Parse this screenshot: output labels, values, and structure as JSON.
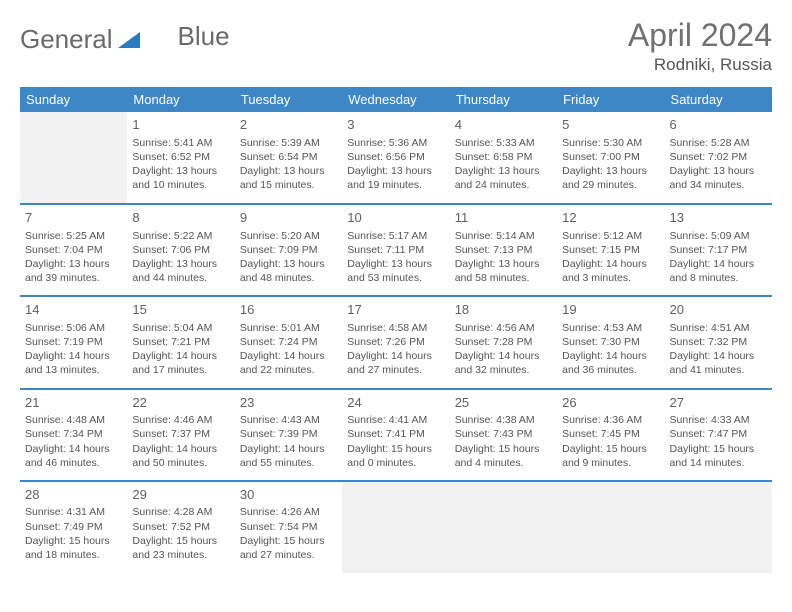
{
  "brand": {
    "part1": "General",
    "part2": "Blue"
  },
  "title": "April 2024",
  "location": "Rodniki, Russia",
  "colors": {
    "header_bg": "#3d87c7",
    "header_text": "#ffffff",
    "border": "#3d87c7",
    "empty_bg": "#f2f2f2",
    "text": "#555555",
    "title_text": "#707070",
    "logo_text": "#6a6a6a",
    "logo_accent": "#2a7bbf"
  },
  "weekdays": [
    "Sunday",
    "Monday",
    "Tuesday",
    "Wednesday",
    "Thursday",
    "Friday",
    "Saturday"
  ],
  "cells": [
    {
      "empty": true
    },
    {
      "day": "1",
      "sunrise": "Sunrise: 5:41 AM",
      "sunset": "Sunset: 6:52 PM",
      "daylight1": "Daylight: 13 hours",
      "daylight2": "and 10 minutes."
    },
    {
      "day": "2",
      "sunrise": "Sunrise: 5:39 AM",
      "sunset": "Sunset: 6:54 PM",
      "daylight1": "Daylight: 13 hours",
      "daylight2": "and 15 minutes."
    },
    {
      "day": "3",
      "sunrise": "Sunrise: 5:36 AM",
      "sunset": "Sunset: 6:56 PM",
      "daylight1": "Daylight: 13 hours",
      "daylight2": "and 19 minutes."
    },
    {
      "day": "4",
      "sunrise": "Sunrise: 5:33 AM",
      "sunset": "Sunset: 6:58 PM",
      "daylight1": "Daylight: 13 hours",
      "daylight2": "and 24 minutes."
    },
    {
      "day": "5",
      "sunrise": "Sunrise: 5:30 AM",
      "sunset": "Sunset: 7:00 PM",
      "daylight1": "Daylight: 13 hours",
      "daylight2": "and 29 minutes."
    },
    {
      "day": "6",
      "sunrise": "Sunrise: 5:28 AM",
      "sunset": "Sunset: 7:02 PM",
      "daylight1": "Daylight: 13 hours",
      "daylight2": "and 34 minutes."
    },
    {
      "day": "7",
      "sunrise": "Sunrise: 5:25 AM",
      "sunset": "Sunset: 7:04 PM",
      "daylight1": "Daylight: 13 hours",
      "daylight2": "and 39 minutes."
    },
    {
      "day": "8",
      "sunrise": "Sunrise: 5:22 AM",
      "sunset": "Sunset: 7:06 PM",
      "daylight1": "Daylight: 13 hours",
      "daylight2": "and 44 minutes."
    },
    {
      "day": "9",
      "sunrise": "Sunrise: 5:20 AM",
      "sunset": "Sunset: 7:09 PM",
      "daylight1": "Daylight: 13 hours",
      "daylight2": "and 48 minutes."
    },
    {
      "day": "10",
      "sunrise": "Sunrise: 5:17 AM",
      "sunset": "Sunset: 7:11 PM",
      "daylight1": "Daylight: 13 hours",
      "daylight2": "and 53 minutes."
    },
    {
      "day": "11",
      "sunrise": "Sunrise: 5:14 AM",
      "sunset": "Sunset: 7:13 PM",
      "daylight1": "Daylight: 13 hours",
      "daylight2": "and 58 minutes."
    },
    {
      "day": "12",
      "sunrise": "Sunrise: 5:12 AM",
      "sunset": "Sunset: 7:15 PM",
      "daylight1": "Daylight: 14 hours",
      "daylight2": "and 3 minutes."
    },
    {
      "day": "13",
      "sunrise": "Sunrise: 5:09 AM",
      "sunset": "Sunset: 7:17 PM",
      "daylight1": "Daylight: 14 hours",
      "daylight2": "and 8 minutes."
    },
    {
      "day": "14",
      "sunrise": "Sunrise: 5:06 AM",
      "sunset": "Sunset: 7:19 PM",
      "daylight1": "Daylight: 14 hours",
      "daylight2": "and 13 minutes."
    },
    {
      "day": "15",
      "sunrise": "Sunrise: 5:04 AM",
      "sunset": "Sunset: 7:21 PM",
      "daylight1": "Daylight: 14 hours",
      "daylight2": "and 17 minutes."
    },
    {
      "day": "16",
      "sunrise": "Sunrise: 5:01 AM",
      "sunset": "Sunset: 7:24 PM",
      "daylight1": "Daylight: 14 hours",
      "daylight2": "and 22 minutes."
    },
    {
      "day": "17",
      "sunrise": "Sunrise: 4:58 AM",
      "sunset": "Sunset: 7:26 PM",
      "daylight1": "Daylight: 14 hours",
      "daylight2": "and 27 minutes."
    },
    {
      "day": "18",
      "sunrise": "Sunrise: 4:56 AM",
      "sunset": "Sunset: 7:28 PM",
      "daylight1": "Daylight: 14 hours",
      "daylight2": "and 32 minutes."
    },
    {
      "day": "19",
      "sunrise": "Sunrise: 4:53 AM",
      "sunset": "Sunset: 7:30 PM",
      "daylight1": "Daylight: 14 hours",
      "daylight2": "and 36 minutes."
    },
    {
      "day": "20",
      "sunrise": "Sunrise: 4:51 AM",
      "sunset": "Sunset: 7:32 PM",
      "daylight1": "Daylight: 14 hours",
      "daylight2": "and 41 minutes."
    },
    {
      "day": "21",
      "sunrise": "Sunrise: 4:48 AM",
      "sunset": "Sunset: 7:34 PM",
      "daylight1": "Daylight: 14 hours",
      "daylight2": "and 46 minutes."
    },
    {
      "day": "22",
      "sunrise": "Sunrise: 4:46 AM",
      "sunset": "Sunset: 7:37 PM",
      "daylight1": "Daylight: 14 hours",
      "daylight2": "and 50 minutes."
    },
    {
      "day": "23",
      "sunrise": "Sunrise: 4:43 AM",
      "sunset": "Sunset: 7:39 PM",
      "daylight1": "Daylight: 14 hours",
      "daylight2": "and 55 minutes."
    },
    {
      "day": "24",
      "sunrise": "Sunrise: 4:41 AM",
      "sunset": "Sunset: 7:41 PM",
      "daylight1": "Daylight: 15 hours",
      "daylight2": "and 0 minutes."
    },
    {
      "day": "25",
      "sunrise": "Sunrise: 4:38 AM",
      "sunset": "Sunset: 7:43 PM",
      "daylight1": "Daylight: 15 hours",
      "daylight2": "and 4 minutes."
    },
    {
      "day": "26",
      "sunrise": "Sunrise: 4:36 AM",
      "sunset": "Sunset: 7:45 PM",
      "daylight1": "Daylight: 15 hours",
      "daylight2": "and 9 minutes."
    },
    {
      "day": "27",
      "sunrise": "Sunrise: 4:33 AM",
      "sunset": "Sunset: 7:47 PM",
      "daylight1": "Daylight: 15 hours",
      "daylight2": "and 14 minutes."
    },
    {
      "day": "28",
      "sunrise": "Sunrise: 4:31 AM",
      "sunset": "Sunset: 7:49 PM",
      "daylight1": "Daylight: 15 hours",
      "daylight2": "and 18 minutes."
    },
    {
      "day": "29",
      "sunrise": "Sunrise: 4:28 AM",
      "sunset": "Sunset: 7:52 PM",
      "daylight1": "Daylight: 15 hours",
      "daylight2": "and 23 minutes."
    },
    {
      "day": "30",
      "sunrise": "Sunrise: 4:26 AM",
      "sunset": "Sunset: 7:54 PM",
      "daylight1": "Daylight: 15 hours",
      "daylight2": "and 27 minutes."
    },
    {
      "empty": true
    },
    {
      "empty": true
    },
    {
      "empty": true
    },
    {
      "empty": true
    }
  ]
}
